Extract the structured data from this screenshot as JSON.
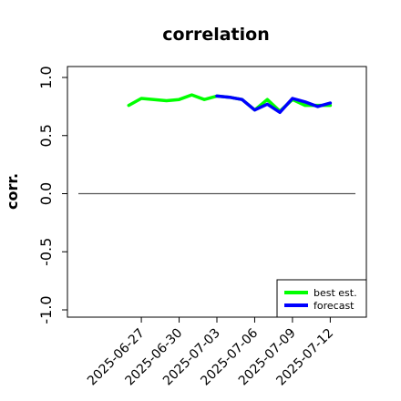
{
  "chart_data": {
    "type": "line",
    "title": "correlation",
    "xlabel": "",
    "ylabel": "corr.",
    "ylim": [
      -1.0,
      1.0
    ],
    "yticks": [
      "-1.0",
      "-0.5",
      "0.0",
      "0.5",
      "1.0"
    ],
    "yticks_values": [
      -1.0,
      -0.5,
      0.0,
      0.5,
      1.0
    ],
    "x_range": [
      "2025-06-22",
      "2025-07-14"
    ],
    "xticks": [
      "2025-06-27",
      "2025-06-30",
      "2025-07-03",
      "2025-07-06",
      "2025-07-09",
      "2025-07-12"
    ],
    "highlight_tick": "2025-07-03",
    "highlight_color": "#228B22",
    "reference_line": 0.0,
    "grid": false,
    "legend_placement": "bottom-right",
    "series": [
      {
        "name": "best est.",
        "color": "#00ff00",
        "x": [
          "2025-06-26",
          "2025-06-27",
          "2025-06-28",
          "2025-06-29",
          "2025-06-30",
          "2025-07-01",
          "2025-07-02",
          "2025-07-03",
          "2025-07-04",
          "2025-07-05",
          "2025-07-06",
          "2025-07-07",
          "2025-07-08",
          "2025-07-09",
          "2025-07-10",
          "2025-07-11",
          "2025-07-12"
        ],
        "y": [
          0.76,
          0.82,
          0.81,
          0.8,
          0.81,
          0.85,
          0.81,
          0.84,
          0.83,
          0.81,
          0.72,
          0.81,
          0.71,
          0.81,
          0.76,
          0.76,
          0.76
        ]
      },
      {
        "name": "forecast",
        "color": "#0000ff",
        "x": [
          "2025-07-03",
          "2025-07-04",
          "2025-07-05",
          "2025-07-06",
          "2025-07-07",
          "2025-07-08",
          "2025-07-09",
          "2025-07-10",
          "2025-07-11",
          "2025-07-12"
        ],
        "y": [
          0.84,
          0.83,
          0.81,
          0.72,
          0.77,
          0.7,
          0.82,
          0.79,
          0.75,
          0.78
        ]
      }
    ]
  }
}
